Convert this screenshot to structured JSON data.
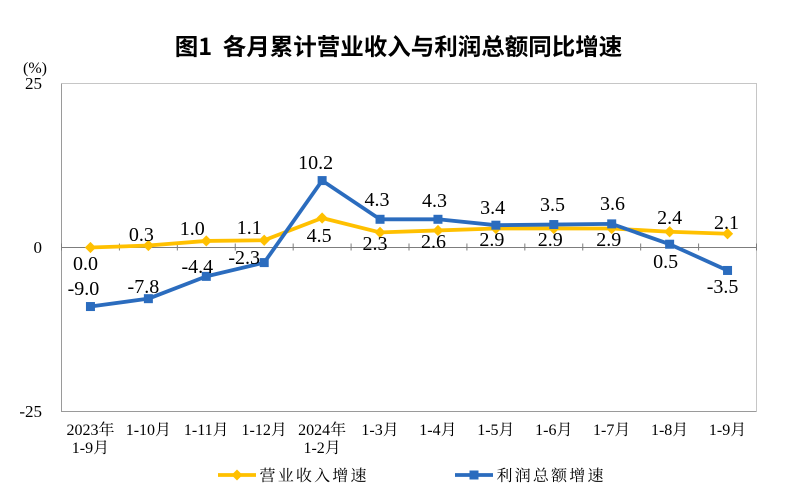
{
  "page": {
    "background": "#ffffff"
  },
  "chart_data": {
    "type": "line",
    "title": "图1  各月累计营业收入与利润总额同比增速",
    "unit_label": "(%)",
    "categories": [
      [
        "2023年",
        "1-9月"
      ],
      [
        "1-10月"
      ],
      [
        "1-11月"
      ],
      [
        "1-12月"
      ],
      [
        "2024年",
        "1-2月"
      ],
      [
        "1-3月"
      ],
      [
        "1-4月"
      ],
      [
        "1-5月"
      ],
      [
        "1-6月"
      ],
      [
        "1-7月"
      ],
      [
        "1-8月"
      ],
      [
        "1-9月"
      ]
    ],
    "y_axis": {
      "ticks": [
        25,
        0,
        -25
      ],
      "min": -25,
      "max": 25,
      "unit": "%"
    },
    "series": [
      {
        "name": "营业收入增速",
        "color": "#FFC000",
        "marker": "diamond",
        "values": [
          0.0,
          0.3,
          1.0,
          1.1,
          4.5,
          2.3,
          2.6,
          2.9,
          2.9,
          2.9,
          2.4,
          2.1
        ]
      },
      {
        "name": "利润总额增速",
        "color": "#2B6CBE",
        "marker": "square",
        "values": [
          -9.0,
          -7.8,
          -4.4,
          -2.3,
          10.2,
          4.3,
          4.3,
          3.4,
          3.5,
          3.6,
          0.5,
          -3.5
        ]
      }
    ],
    "legend": {
      "position": "bottom"
    },
    "grid": "none"
  }
}
